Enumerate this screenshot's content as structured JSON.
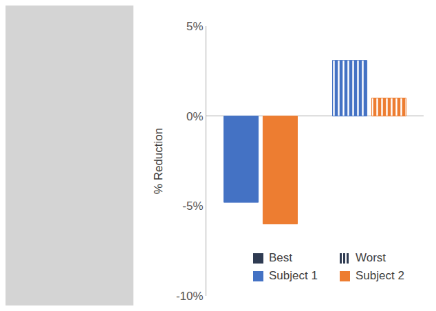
{
  "chart_data": {
    "type": "bar",
    "categories": [
      null,
      null
    ],
    "groups": [
      {
        "name": "Best",
        "marker": "solid",
        "color": "#2f3b52"
      },
      {
        "name": "Worst",
        "marker": "striped",
        "color": "#2f3b52"
      }
    ],
    "series": [
      {
        "name": "Subject 1",
        "color": "#4472c4",
        "values": [
          -4.8,
          3.1
        ]
      },
      {
        "name": "Subject 2",
        "color": "#ed7d31",
        "values": [
          -6.0,
          1.0
        ]
      }
    ],
    "y_label": "% Reduction",
    "ylim": [
      -10,
      5
    ],
    "yticks": [
      {
        "value": -10,
        "label": "-10%"
      },
      {
        "value": -5,
        "label": "-5%"
      },
      {
        "value": 0,
        "label": "0%"
      },
      {
        "value": 5,
        "label": "5%"
      }
    ],
    "grid": false,
    "legend": "lower right"
  }
}
